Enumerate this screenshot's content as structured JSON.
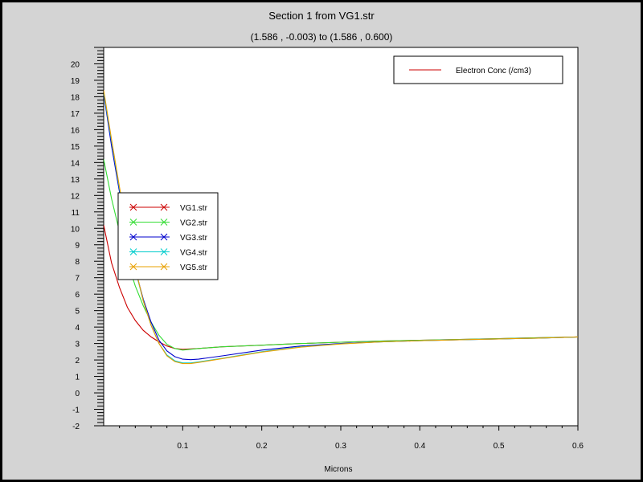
{
  "chart_data": {
    "type": "line",
    "title": "Section 1 from VG1.str",
    "subtitle": "(1.586 , -0.003) to (1.586 , 0.600)",
    "xlabel": "Microns",
    "ylabel": "",
    "xlim": [
      0,
      0.6
    ],
    "ylim": [
      -2,
      21
    ],
    "x_ticks": [
      0.1,
      0.2,
      0.3,
      0.4,
      0.5,
      0.6
    ],
    "y_ticks": [
      -2,
      -1,
      0,
      1,
      2,
      3,
      4,
      5,
      6,
      7,
      8,
      9,
      10,
      11,
      12,
      13,
      14,
      15,
      16,
      17,
      18,
      19,
      20
    ],
    "quantity_legend": "Electron Conc (/cm3)",
    "quantity_legend_color": "#cc0000",
    "series": [
      {
        "name": "VG1.str",
        "color": "#cc0000",
        "x": [
          0.0,
          0.01,
          0.02,
          0.03,
          0.04,
          0.05,
          0.06,
          0.07,
          0.08,
          0.09,
          0.1,
          0.12,
          0.15,
          0.2,
          0.25,
          0.3,
          0.35,
          0.4,
          0.45,
          0.5,
          0.55,
          0.6
        ],
        "values": [
          10.2,
          7.9,
          6.4,
          5.2,
          4.4,
          3.8,
          3.4,
          3.1,
          2.85,
          2.7,
          2.65,
          2.7,
          2.8,
          2.9,
          3.0,
          3.08,
          3.15,
          3.2,
          3.25,
          3.3,
          3.35,
          3.4
        ]
      },
      {
        "name": "VG2.str",
        "color": "#33dd33",
        "x": [
          0.0,
          0.01,
          0.02,
          0.03,
          0.04,
          0.05,
          0.06,
          0.07,
          0.08,
          0.09,
          0.1,
          0.12,
          0.15,
          0.2,
          0.25,
          0.3,
          0.35,
          0.4,
          0.45,
          0.5,
          0.55,
          0.6
        ],
        "values": [
          14.2,
          11.8,
          9.8,
          8.0,
          6.5,
          5.3,
          4.3,
          3.5,
          2.95,
          2.7,
          2.6,
          2.7,
          2.8,
          2.9,
          3.0,
          3.08,
          3.15,
          3.2,
          3.25,
          3.3,
          3.35,
          3.4
        ]
      },
      {
        "name": "VG3.str",
        "color": "#0000cc",
        "x": [
          0.0,
          0.01,
          0.02,
          0.03,
          0.04,
          0.05,
          0.06,
          0.07,
          0.08,
          0.09,
          0.1,
          0.11,
          0.12,
          0.15,
          0.2,
          0.25,
          0.3,
          0.35,
          0.4,
          0.45,
          0.5,
          0.55,
          0.6
        ],
        "values": [
          18.2,
          15.0,
          12.2,
          9.7,
          7.5,
          5.7,
          4.3,
          3.2,
          2.55,
          2.2,
          2.05,
          2.02,
          2.05,
          2.25,
          2.6,
          2.85,
          3.0,
          3.1,
          3.17,
          3.23,
          3.28,
          3.33,
          3.4
        ]
      },
      {
        "name": "VG4.str",
        "color": "#00cccc",
        "x": [
          0.0,
          0.01,
          0.02,
          0.03,
          0.04,
          0.05,
          0.06,
          0.07,
          0.08,
          0.09,
          0.1,
          0.11,
          0.12,
          0.15,
          0.2,
          0.25,
          0.3,
          0.35,
          0.4,
          0.45,
          0.5,
          0.55,
          0.6
        ],
        "values": [
          18.3,
          15.3,
          12.4,
          9.8,
          7.5,
          5.6,
          4.1,
          3.0,
          2.3,
          1.95,
          1.82,
          1.82,
          1.88,
          2.1,
          2.5,
          2.8,
          2.98,
          3.1,
          3.17,
          3.23,
          3.28,
          3.33,
          3.4
        ]
      },
      {
        "name": "VG5.str",
        "color": "#e8a000",
        "x": [
          0.0,
          0.01,
          0.02,
          0.03,
          0.04,
          0.05,
          0.06,
          0.07,
          0.08,
          0.09,
          0.1,
          0.11,
          0.12,
          0.15,
          0.2,
          0.25,
          0.3,
          0.35,
          0.4,
          0.45,
          0.5,
          0.55,
          0.6
        ],
        "values": [
          18.4,
          15.4,
          12.5,
          9.9,
          7.6,
          5.6,
          4.1,
          3.0,
          2.25,
          1.9,
          1.78,
          1.78,
          1.85,
          2.08,
          2.48,
          2.78,
          2.97,
          3.1,
          3.17,
          3.23,
          3.28,
          3.33,
          3.4
        ]
      }
    ],
    "grid": false,
    "legend_position": "left"
  }
}
